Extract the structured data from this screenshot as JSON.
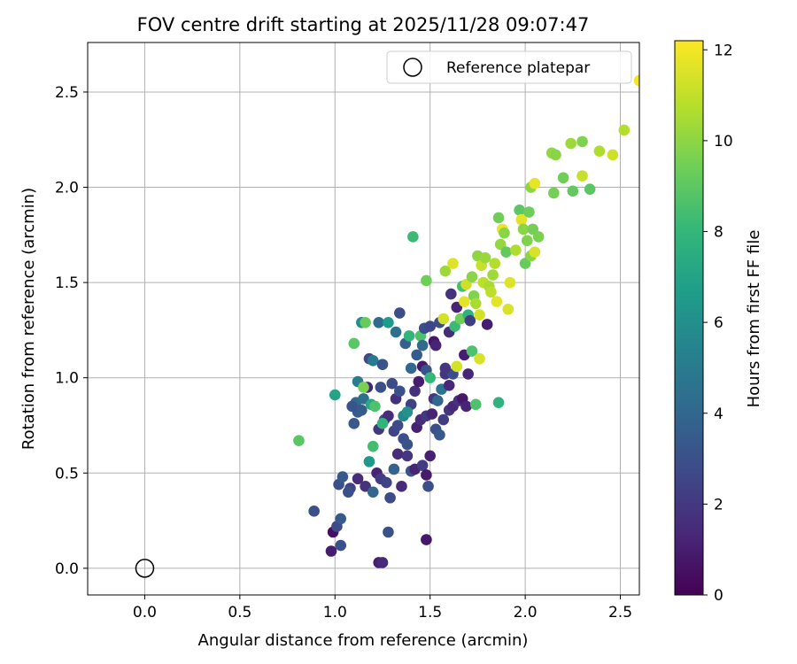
{
  "chart_data": {
    "type": "scatter",
    "title": "FOV centre drift starting at 2025/11/28 09:07:47",
    "xlabel": "Angular distance from reference (arcmin)",
    "ylabel": "Rotation from reference (arcmin)",
    "xlim": [
      -0.3,
      2.6
    ],
    "ylim": [
      -0.14,
      2.76
    ],
    "xticks": [
      "0.0",
      "0.5",
      "1.0",
      "1.5",
      "2.0",
      "2.5"
    ],
    "yticks": [
      "0.0",
      "0.5",
      "1.0",
      "1.5",
      "2.0",
      "2.5"
    ],
    "grid": true,
    "legend": {
      "position": "top-right",
      "entries": [
        "Reference platepar"
      ]
    },
    "reference_point": {
      "x": 0.0,
      "y": 0.0,
      "label": "Reference platepar",
      "marker": "open-circle"
    },
    "colorbar": {
      "label": "Hours from first FF file",
      "colormap": "viridis",
      "range": [
        0,
        12.2
      ],
      "ticks": [
        "0",
        "2",
        "4",
        "6",
        "8",
        "10",
        "12"
      ]
    },
    "series": [
      {
        "color_encodes": "hours",
        "points": [
          [
            0.98,
            0.09,
            1.0
          ],
          [
            0.99,
            0.19,
            0.5
          ],
          [
            1.01,
            0.22,
            2.8
          ],
          [
            1.03,
            0.26,
            3.4
          ],
          [
            1.03,
            0.12,
            3.1
          ],
          [
            0.89,
            0.3,
            3.0
          ],
          [
            1.23,
            0.03,
            1.0
          ],
          [
            1.25,
            0.03,
            1.4
          ],
          [
            1.28,
            0.19,
            3.1
          ],
          [
            1.48,
            0.15,
            0.8
          ],
          [
            1.02,
            0.44,
            3.0
          ],
          [
            1.04,
            0.48,
            3.4
          ],
          [
            1.08,
            0.42,
            2.5
          ],
          [
            1.12,
            0.47,
            1.5
          ],
          [
            1.16,
            0.43,
            1.8
          ],
          [
            1.18,
            0.56,
            6.5
          ],
          [
            1.2,
            0.4,
            4.0
          ],
          [
            1.22,
            0.5,
            1.2
          ],
          [
            1.24,
            0.47,
            2.2
          ],
          [
            1.27,
            0.45,
            2.5
          ],
          [
            1.29,
            0.37,
            2.8
          ],
          [
            1.31,
            0.52,
            3.8
          ],
          [
            1.33,
            0.6,
            1.5
          ],
          [
            1.35,
            0.43,
            1.5
          ],
          [
            1.38,
            0.59,
            2.0
          ],
          [
            1.4,
            0.51,
            3.2
          ],
          [
            1.42,
            0.52,
            1.2
          ],
          [
            1.46,
            0.54,
            2.2
          ],
          [
            1.48,
            0.49,
            0.9
          ],
          [
            1.49,
            0.43,
            3.0
          ],
          [
            1.5,
            0.59,
            1.1
          ],
          [
            1.2,
            0.64,
            8.5
          ],
          [
            1.23,
            0.73,
            2.0
          ],
          [
            1.26,
            0.78,
            2.6
          ],
          [
            1.28,
            0.8,
            1.5
          ],
          [
            1.31,
            0.72,
            2.5
          ],
          [
            1.33,
            0.75,
            2.8
          ],
          [
            1.36,
            0.68,
            3.0
          ],
          [
            1.38,
            0.65,
            3.2
          ],
          [
            1.4,
            0.86,
            2.4
          ],
          [
            1.43,
            0.74,
            1.1
          ],
          [
            1.45,
            0.78,
            1.5
          ],
          [
            1.48,
            0.8,
            2.0
          ],
          [
            1.51,
            0.81,
            1.2
          ],
          [
            1.53,
            0.73,
            3.0
          ],
          [
            1.55,
            0.7,
            3.4
          ],
          [
            1.57,
            0.78,
            2.2
          ],
          [
            1.6,
            0.83,
            1.9
          ],
          [
            1.62,
            0.85,
            1.4
          ],
          [
            1.65,
            0.88,
            1.8
          ],
          [
            1.67,
            0.89,
            0.8
          ],
          [
            1.69,
            0.85,
            1.2
          ],
          [
            1.74,
            0.86,
            8.7
          ],
          [
            1.86,
            0.87,
            7.8
          ],
          [
            1.12,
            0.82,
            3.4
          ],
          [
            1.1,
            0.76,
            3.4
          ],
          [
            1.11,
            0.87,
            4.0
          ],
          [
            1.14,
            0.83,
            3.5
          ],
          [
            1.15,
            0.89,
            4.5
          ],
          [
            1.17,
            0.95,
            1.2
          ],
          [
            1.19,
            0.86,
            7.3
          ],
          [
            1.21,
            0.85,
            8.7
          ],
          [
            1.24,
            0.95,
            3.0
          ],
          [
            1.25,
            0.76,
            8.0
          ],
          [
            1.3,
            0.97,
            2.8
          ],
          [
            1.32,
            0.89,
            1.7
          ],
          [
            1.34,
            0.93,
            3.1
          ],
          [
            1.36,
            0.8,
            5.6
          ],
          [
            1.38,
            0.82,
            6.2
          ],
          [
            1.4,
            1.05,
            4.0
          ],
          [
            1.42,
            0.93,
            1.7
          ],
          [
            1.44,
            0.98,
            1.0
          ],
          [
            1.46,
            1.06,
            0.8
          ],
          [
            1.48,
            1.04,
            3.1
          ],
          [
            1.5,
            1.0,
            8.1
          ],
          [
            1.52,
            0.89,
            2.0
          ],
          [
            1.54,
            0.88,
            4.0
          ],
          [
            1.56,
            0.94,
            4.6
          ],
          [
            1.58,
            1.02,
            1.9
          ],
          [
            1.6,
            0.96,
            1.4
          ],
          [
            1.62,
            1.02,
            3.0
          ],
          [
            1.64,
            1.06,
            11.4
          ],
          [
            1.68,
            1.12,
            1.0
          ],
          [
            1.7,
            1.02,
            1.3
          ],
          [
            1.72,
            1.14,
            8.7
          ],
          [
            1.76,
            1.1,
            11.5
          ],
          [
            1.0,
            0.91,
            7.1
          ],
          [
            1.09,
            0.85,
            3.2
          ],
          [
            1.12,
            0.98,
            5.2
          ],
          [
            1.15,
            0.95,
            9.7
          ],
          [
            1.14,
            1.29,
            6.0
          ],
          [
            1.16,
            1.29,
            9.3
          ],
          [
            1.1,
            1.18,
            9.0
          ],
          [
            1.18,
            1.1,
            2.8
          ],
          [
            1.2,
            1.09,
            5.0
          ],
          [
            1.23,
            1.29,
            4.2
          ],
          [
            1.25,
            1.07,
            3.2
          ],
          [
            1.28,
            1.29,
            6.6
          ],
          [
            1.32,
            1.24,
            4.5
          ],
          [
            1.34,
            1.34,
            2.9
          ],
          [
            1.37,
            1.18,
            3.8
          ],
          [
            1.39,
            1.22,
            8.0
          ],
          [
            1.41,
            1.74,
            8.3
          ],
          [
            1.43,
            1.12,
            3.6
          ],
          [
            1.45,
            1.22,
            8.7
          ],
          [
            1.46,
            1.17,
            4.2
          ],
          [
            1.47,
            1.26,
            3.0
          ],
          [
            1.48,
            1.51,
            9.5
          ],
          [
            1.5,
            1.27,
            2.6
          ],
          [
            1.52,
            1.19,
            0.7
          ],
          [
            1.53,
            1.17,
            1.2
          ],
          [
            1.55,
            1.29,
            2.8
          ],
          [
            1.57,
            1.31,
            11.4
          ],
          [
            1.58,
            1.56,
            10.4
          ],
          [
            1.6,
            1.24,
            1.5
          ],
          [
            1.61,
            1.44,
            1.8
          ],
          [
            1.62,
            1.6,
            11.6
          ],
          [
            1.63,
            1.27,
            8.3
          ],
          [
            1.64,
            1.37,
            1.2
          ],
          [
            1.66,
            1.31,
            9.5
          ],
          [
            1.67,
            1.48,
            8.6
          ],
          [
            1.68,
            1.4,
            11.7
          ],
          [
            1.69,
            1.49,
            11.3
          ],
          [
            1.7,
            1.33,
            7.8
          ],
          [
            1.71,
            1.3,
            2.3
          ],
          [
            1.72,
            1.53,
            10.0
          ],
          [
            1.73,
            1.43,
            9.8
          ],
          [
            1.74,
            1.39,
            10.6
          ],
          [
            1.75,
            1.64,
            10.1
          ],
          [
            1.76,
            1.33,
            11.4
          ],
          [
            1.77,
            1.59,
            11.2
          ],
          [
            1.78,
            1.5,
            11.0
          ],
          [
            1.79,
            1.63,
            10.3
          ],
          [
            1.8,
            1.28,
            1.0
          ],
          [
            1.81,
            1.48,
            10.6
          ],
          [
            1.82,
            1.45,
            11.0
          ],
          [
            1.83,
            1.54,
            10.4
          ],
          [
            1.84,
            1.6,
            10.8
          ],
          [
            1.85,
            1.4,
            11.7
          ],
          [
            1.86,
            1.84,
            9.5
          ],
          [
            1.87,
            1.7,
            10.2
          ],
          [
            1.88,
            1.78,
            11.8
          ],
          [
            1.89,
            1.76,
            10.0
          ],
          [
            1.9,
            1.66,
            9.2
          ],
          [
            1.91,
            1.36,
            11.5
          ],
          [
            1.92,
            1.5,
            11.6
          ],
          [
            1.95,
            1.67,
            10.7
          ],
          [
            1.97,
            1.88,
            9.0
          ],
          [
            1.98,
            1.83,
            11.7
          ],
          [
            1.99,
            1.78,
            10.0
          ],
          [
            2.0,
            1.6,
            9.3
          ],
          [
            2.01,
            1.72,
            9.8
          ],
          [
            2.02,
            1.87,
            9.4
          ],
          [
            2.03,
            1.64,
            10.0
          ],
          [
            2.04,
            1.78,
            9.6
          ],
          [
            2.05,
            1.66,
            11.5
          ],
          [
            2.07,
            1.74,
            9.7
          ],
          [
            2.03,
            2.0,
            10.1
          ],
          [
            2.05,
            2.02,
            11.8
          ],
          [
            2.15,
            1.97,
            9.6
          ],
          [
            2.14,
            2.18,
            10.2
          ],
          [
            2.16,
            2.17,
            10.0
          ],
          [
            2.2,
            2.05,
            9.5
          ],
          [
            2.24,
            2.23,
            10.4
          ],
          [
            2.25,
            1.98,
            9.2
          ],
          [
            2.3,
            2.06,
            11.2
          ],
          [
            2.3,
            2.24,
            9.8
          ],
          [
            2.34,
            1.99,
            9.0
          ],
          [
            2.39,
            2.19,
            10.7
          ],
          [
            2.46,
            2.17,
            11.3
          ],
          [
            2.52,
            2.3,
            10.8
          ],
          [
            2.6,
            2.56,
            12.0
          ],
          [
            0.81,
            0.67,
            9.0
          ],
          [
            1.07,
            0.4,
            3.0
          ],
          [
            1.58,
            1.05,
            2.0
          ]
        ]
      }
    ]
  }
}
